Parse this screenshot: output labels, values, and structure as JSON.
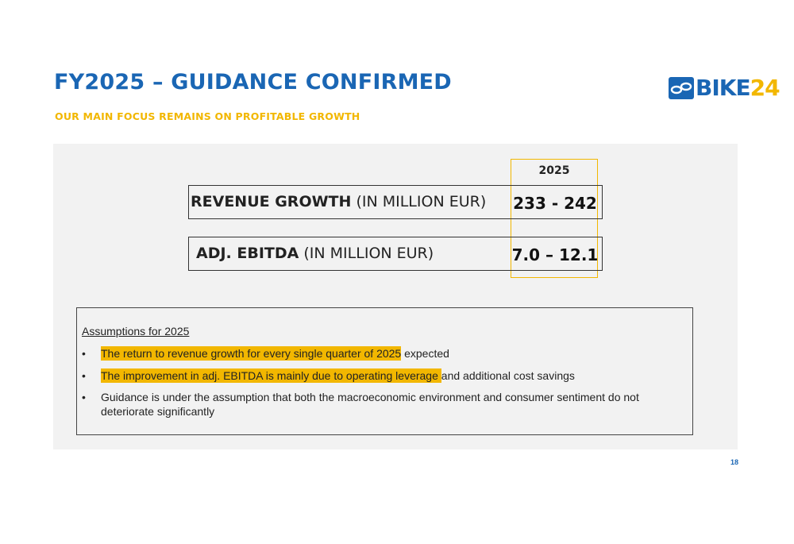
{
  "header": {
    "title": "FY2025 – GUIDANCE CONFIRMED",
    "subtitle": "OUR MAIN FOCUS REMAINS ON PROFITABLE GROWTH"
  },
  "logo": {
    "text_blue": "BIKE",
    "text_yellow": "24",
    "icon": "bike24-chain-icon"
  },
  "guidance": {
    "year": "2025",
    "rows": [
      {
        "label_bold": "REVENUE GROWTH",
        "label_rest": " (IN MILLION EUR)",
        "value": "233 - 242"
      },
      {
        "label_bold": "ADJ. EBITDA",
        "label_rest": " (IN MILLION EUR)",
        "value": "7.0 – 12.1"
      }
    ]
  },
  "assumptions": {
    "heading": "Assumptions for 2025",
    "items": [
      {
        "highlight": "The return to revenue growth for every single quarter of 2025",
        "rest": " expected"
      },
      {
        "highlight": "The improvement in adj. EBITDA is mainly due to operating leverage ",
        "rest": "and additional cost savings"
      },
      {
        "highlight": "",
        "rest": "Guidance is under the assumption that both the macroeconomic environment and consumer sentiment do not deteriorate significantly"
      }
    ]
  },
  "page_number": "18",
  "colors": {
    "brand_blue": "#1a66b4",
    "brand_yellow": "#f2b700",
    "panel_gray": "#f2f2f2"
  }
}
